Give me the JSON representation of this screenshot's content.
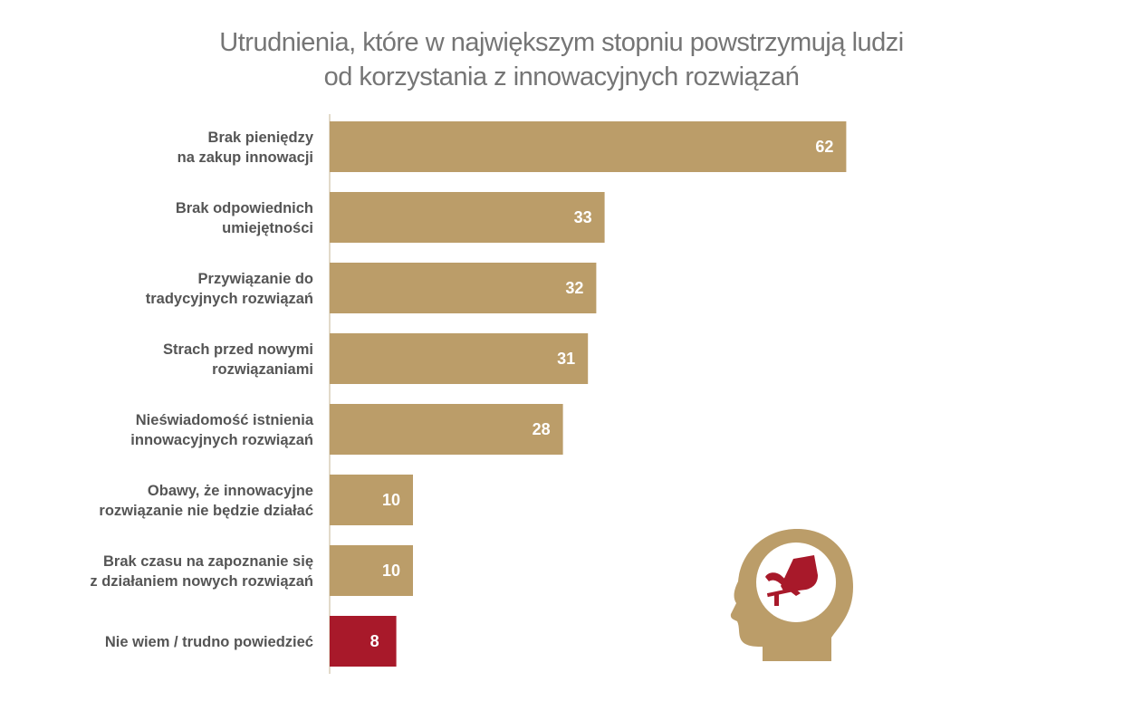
{
  "chart_data": {
    "type": "bar",
    "orientation": "horizontal",
    "title_lines": [
      "Utrudnienia, które w największym stopniu powstrzymują ludzi",
      "od korzystania z innowacyjnych rozwiązań"
    ],
    "categories": [
      [
        "Brak pieniędzy",
        "na zakup innowacji"
      ],
      [
        "Brak odpowiednich",
        "umiejętności"
      ],
      [
        "Przywiązanie do",
        "tradycyjnych rozwiązań"
      ],
      [
        "Strach przed nowymi",
        "rozwiązaniami"
      ],
      [
        "Nieświadomość istnienia",
        "innowacyjnych rozwiązań"
      ],
      [
        "Obawy, że innowacyjne",
        "rozwiązanie nie będzie działać"
      ],
      [
        "Brak czasu na zapoznanie się",
        "z działaniem nowych rozwiązań"
      ],
      [
        "Nie wiem / trudno powiedzieć"
      ]
    ],
    "values": [
      62,
      33,
      32,
      31,
      28,
      10,
      10,
      8
    ],
    "value_labels": [
      "62",
      "33",
      "32",
      "31",
      "28",
      "10",
      "10",
      "8"
    ],
    "colors": [
      "#bb9d69",
      "#bb9d69",
      "#bb9d69",
      "#bb9d69",
      "#bb9d69",
      "#bb9d69",
      "#bb9d69",
      "#a8192a"
    ],
    "axis_color": "#d8cdb8",
    "grid": false,
    "legend": "none"
  },
  "icon": {
    "name": "head-with-brake-pedal-icon",
    "head_color": "#bb9d69",
    "symbol_color": "#a8192a"
  }
}
